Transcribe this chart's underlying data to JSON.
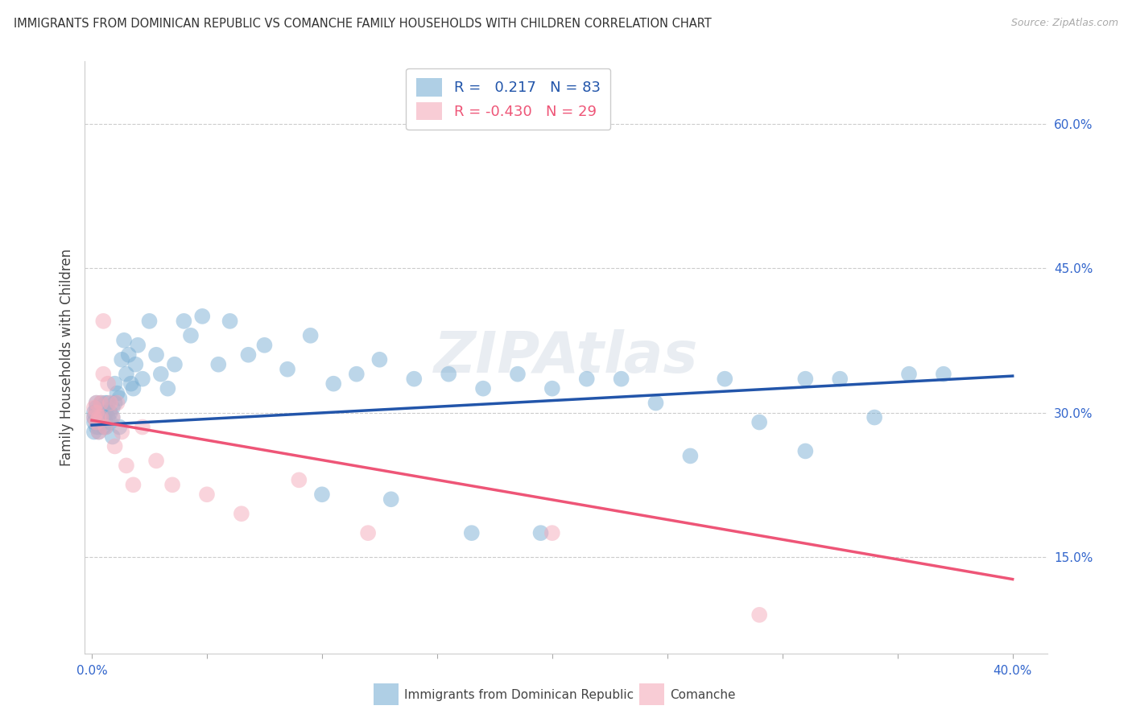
{
  "title": "IMMIGRANTS FROM DOMINICAN REPUBLIC VS COMANCHE FAMILY HOUSEHOLDS WITH CHILDREN CORRELATION CHART",
  "source": "Source: ZipAtlas.com",
  "ylabel": "Family Households with Children",
  "blue_R": 0.217,
  "blue_N": 83,
  "pink_R": -0.43,
  "pink_N": 29,
  "blue_color": "#7BAFD4",
  "pink_color": "#F4AABA",
  "blue_line_color": "#2255AA",
  "pink_line_color": "#EE5577",
  "watermark": "ZIPAtlas",
  "ytick_positions": [
    0.15,
    0.3,
    0.45,
    0.6
  ],
  "ytick_labels": [
    "15.0%",
    "30.0%",
    "45.0%",
    "60.0%"
  ],
  "xtick_positions": [
    0.0,
    0.4
  ],
  "xtick_labels": [
    "0.0%",
    "40.0%"
  ],
  "xlim": [
    -0.003,
    0.415
  ],
  "ylim": [
    0.05,
    0.665
  ],
  "blue_line_x": [
    0.0,
    0.4
  ],
  "blue_line_y": [
    0.287,
    0.338
  ],
  "pink_line_x": [
    0.0,
    0.4
  ],
  "pink_line_y": [
    0.292,
    0.127
  ],
  "legend_label_blue": "Immigrants from Dominican Republic",
  "legend_label_pink": "Comanche",
  "blue_x": [
    0.001,
    0.001,
    0.001,
    0.001,
    0.002,
    0.002,
    0.002,
    0.002,
    0.002,
    0.003,
    0.003,
    0.003,
    0.003,
    0.004,
    0.004,
    0.004,
    0.005,
    0.005,
    0.005,
    0.006,
    0.006,
    0.006,
    0.007,
    0.007,
    0.008,
    0.008,
    0.009,
    0.009,
    0.01,
    0.01,
    0.011,
    0.012,
    0.013,
    0.014,
    0.015,
    0.016,
    0.017,
    0.018,
    0.019,
    0.02,
    0.022,
    0.025,
    0.028,
    0.03,
    0.033,
    0.036,
    0.04,
    0.043,
    0.048,
    0.055,
    0.06,
    0.068,
    0.075,
    0.085,
    0.095,
    0.105,
    0.115,
    0.125,
    0.14,
    0.155,
    0.17,
    0.185,
    0.2,
    0.215,
    0.23,
    0.245,
    0.26,
    0.275,
    0.29,
    0.31,
    0.325,
    0.34,
    0.355,
    0.37,
    0.003,
    0.006,
    0.009,
    0.012,
    0.1,
    0.13,
    0.165,
    0.195,
    0.31
  ],
  "blue_y": [
    0.3,
    0.29,
    0.28,
    0.295,
    0.305,
    0.295,
    0.285,
    0.31,
    0.3,
    0.295,
    0.29,
    0.3,
    0.285,
    0.3,
    0.31,
    0.295,
    0.285,
    0.3,
    0.295,
    0.31,
    0.3,
    0.29,
    0.295,
    0.31,
    0.3,
    0.29,
    0.305,
    0.295,
    0.33,
    0.31,
    0.32,
    0.315,
    0.355,
    0.375,
    0.34,
    0.36,
    0.33,
    0.325,
    0.35,
    0.37,
    0.335,
    0.395,
    0.36,
    0.34,
    0.325,
    0.35,
    0.395,
    0.38,
    0.4,
    0.35,
    0.395,
    0.36,
    0.37,
    0.345,
    0.38,
    0.33,
    0.34,
    0.355,
    0.335,
    0.34,
    0.325,
    0.34,
    0.325,
    0.335,
    0.335,
    0.31,
    0.255,
    0.335,
    0.29,
    0.335,
    0.335,
    0.295,
    0.34,
    0.34,
    0.28,
    0.285,
    0.275,
    0.285,
    0.215,
    0.21,
    0.175,
    0.175,
    0.26
  ],
  "pink_x": [
    0.001,
    0.001,
    0.002,
    0.002,
    0.002,
    0.003,
    0.003,
    0.004,
    0.004,
    0.005,
    0.005,
    0.006,
    0.007,
    0.008,
    0.009,
    0.01,
    0.011,
    0.013,
    0.015,
    0.018,
    0.022,
    0.028,
    0.035,
    0.05,
    0.065,
    0.09,
    0.12,
    0.2,
    0.29
  ],
  "pink_y": [
    0.295,
    0.305,
    0.29,
    0.3,
    0.31,
    0.295,
    0.28,
    0.31,
    0.295,
    0.395,
    0.34,
    0.285,
    0.33,
    0.31,
    0.295,
    0.265,
    0.31,
    0.28,
    0.245,
    0.225,
    0.285,
    0.25,
    0.225,
    0.215,
    0.195,
    0.23,
    0.175,
    0.175,
    0.09
  ]
}
